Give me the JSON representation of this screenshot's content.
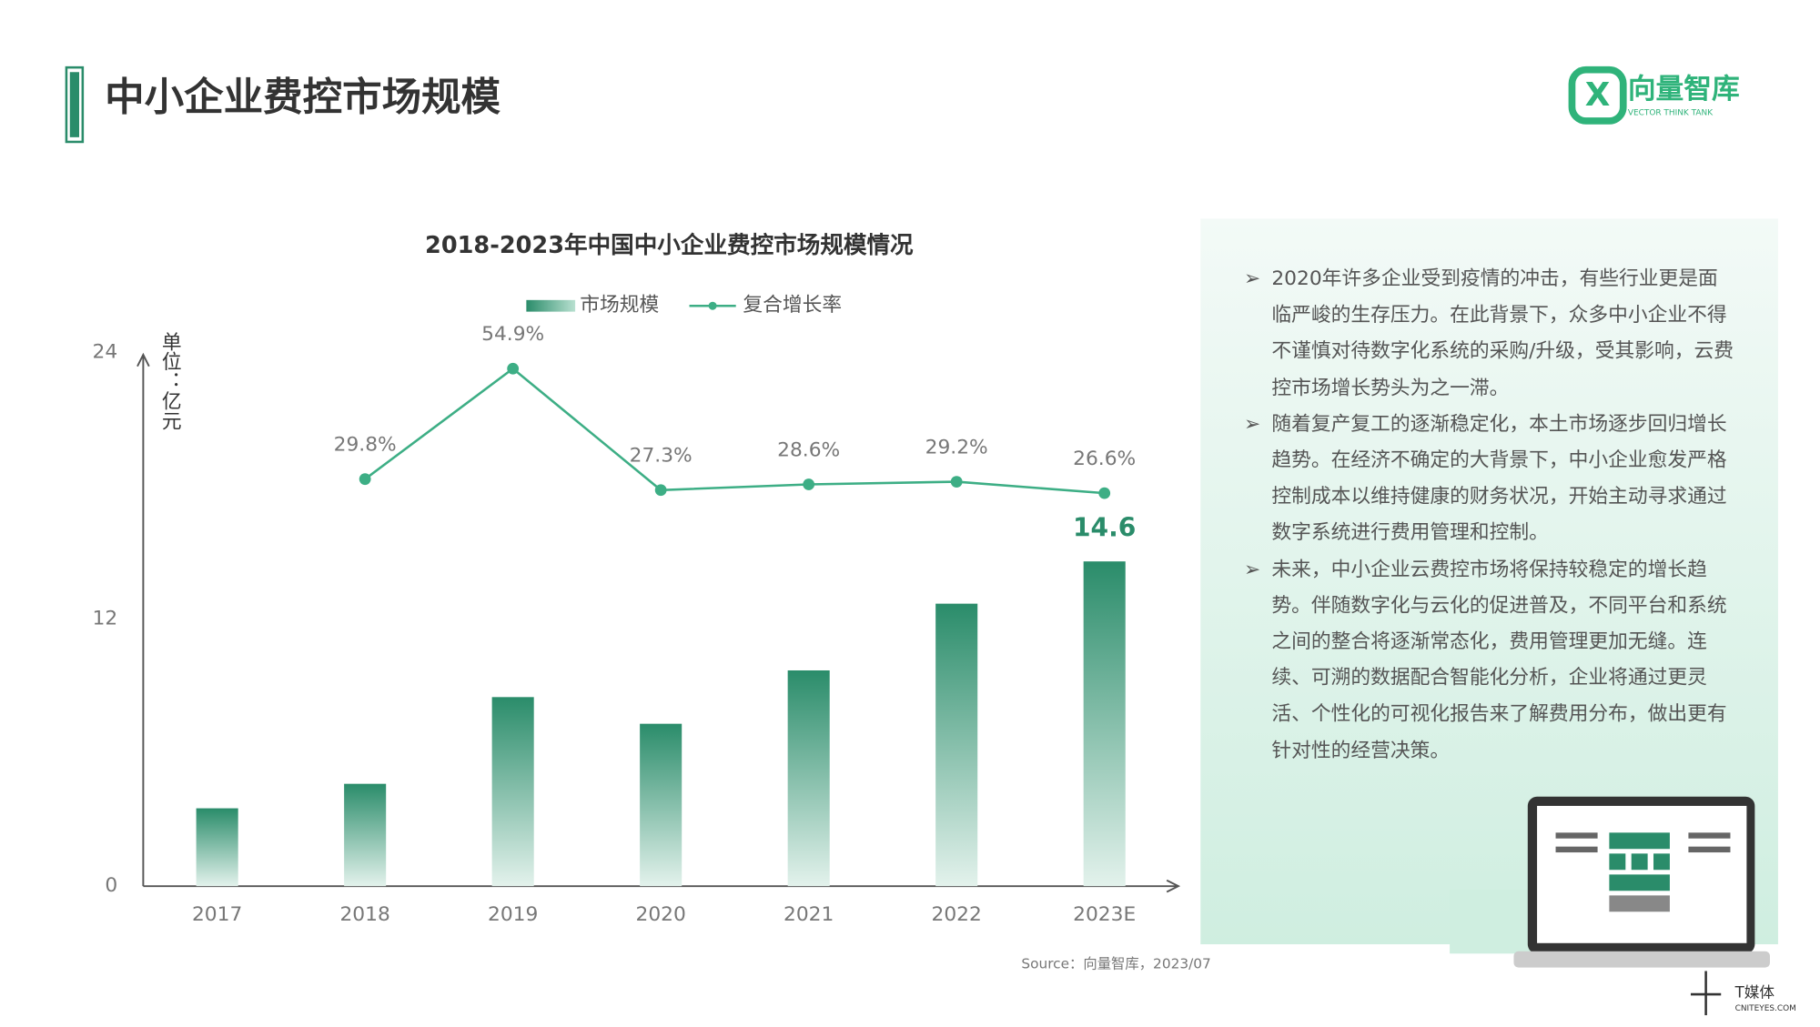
{
  "header": {
    "title": "中小企业费控市场规模",
    "logo": "向量智库",
    "logo_sub": "VECTOR THINK TANK"
  },
  "chart_data": {
    "type": "bar",
    "title": "2018-2023年中国中小企业费控市场规模情况",
    "y_label": "单位：亿元",
    "categories": [
      "2017",
      "2018",
      "2019",
      "2020",
      "2021",
      "2022",
      "2023E"
    ],
    "series": [
      {
        "name": "市场规模",
        "type": "bar",
        "color": "#2a8c6a",
        "values": [
          3.5,
          4.6,
          8.5,
          7.3,
          9.7,
          12.7,
          14.6
        ],
        "value_labels": [
          null,
          null,
          null,
          null,
          null,
          null,
          "14.6"
        ]
      },
      {
        "name": "复合增长率",
        "type": "line",
        "axis": "y2",
        "color": "#3dae85",
        "values": [
          null,
          29.8,
          54.9,
          27.3,
          28.6,
          29.2,
          26.6
        ],
        "value_labels": [
          null,
          "29.8%",
          "54.9%",
          "27.3%",
          "28.6%",
          "29.2%",
          "26.6%"
        ]
      }
    ],
    "ylim": [
      0,
      24
    ],
    "yticks": [
      0,
      12,
      24
    ],
    "y2lim": [
      -62.7,
      58.6
    ],
    "grid": false,
    "source": "Source：向量智库，2023/07"
  },
  "notes": [
    "2020年许多企业受到疫情的冲击，有些行业更是面临严峻的生存压力。在此背景下，众多中小企业不得不谨慎对待数字化系统的采购/升级，受其影响，云费控市场增长势头为之一滞。",
    "随着复产复工的逐渐稳定化，本土市场逐步回归增长趋势。在经济不确定的大背景下，中小企业愈发严格控制成本以维持健康的财务状况，开始主动寻求通过数字系统进行费用管理和控制。",
    "未来，中小企业云费控市场将保持较稳定的增长趋势。伴随数字化与云化的促进普及，不同平台和系统之间的整合将逐渐常态化，费用管理更加无缝。连续、可溯的数据配合智能化分析，企业将通过更灵活、个性化的可视化报告来了解费用分布，做出更有针对性的经营决策。"
  ],
  "watermark": {
    "name": "T媒体",
    "site": "CNITEYES.COM"
  }
}
